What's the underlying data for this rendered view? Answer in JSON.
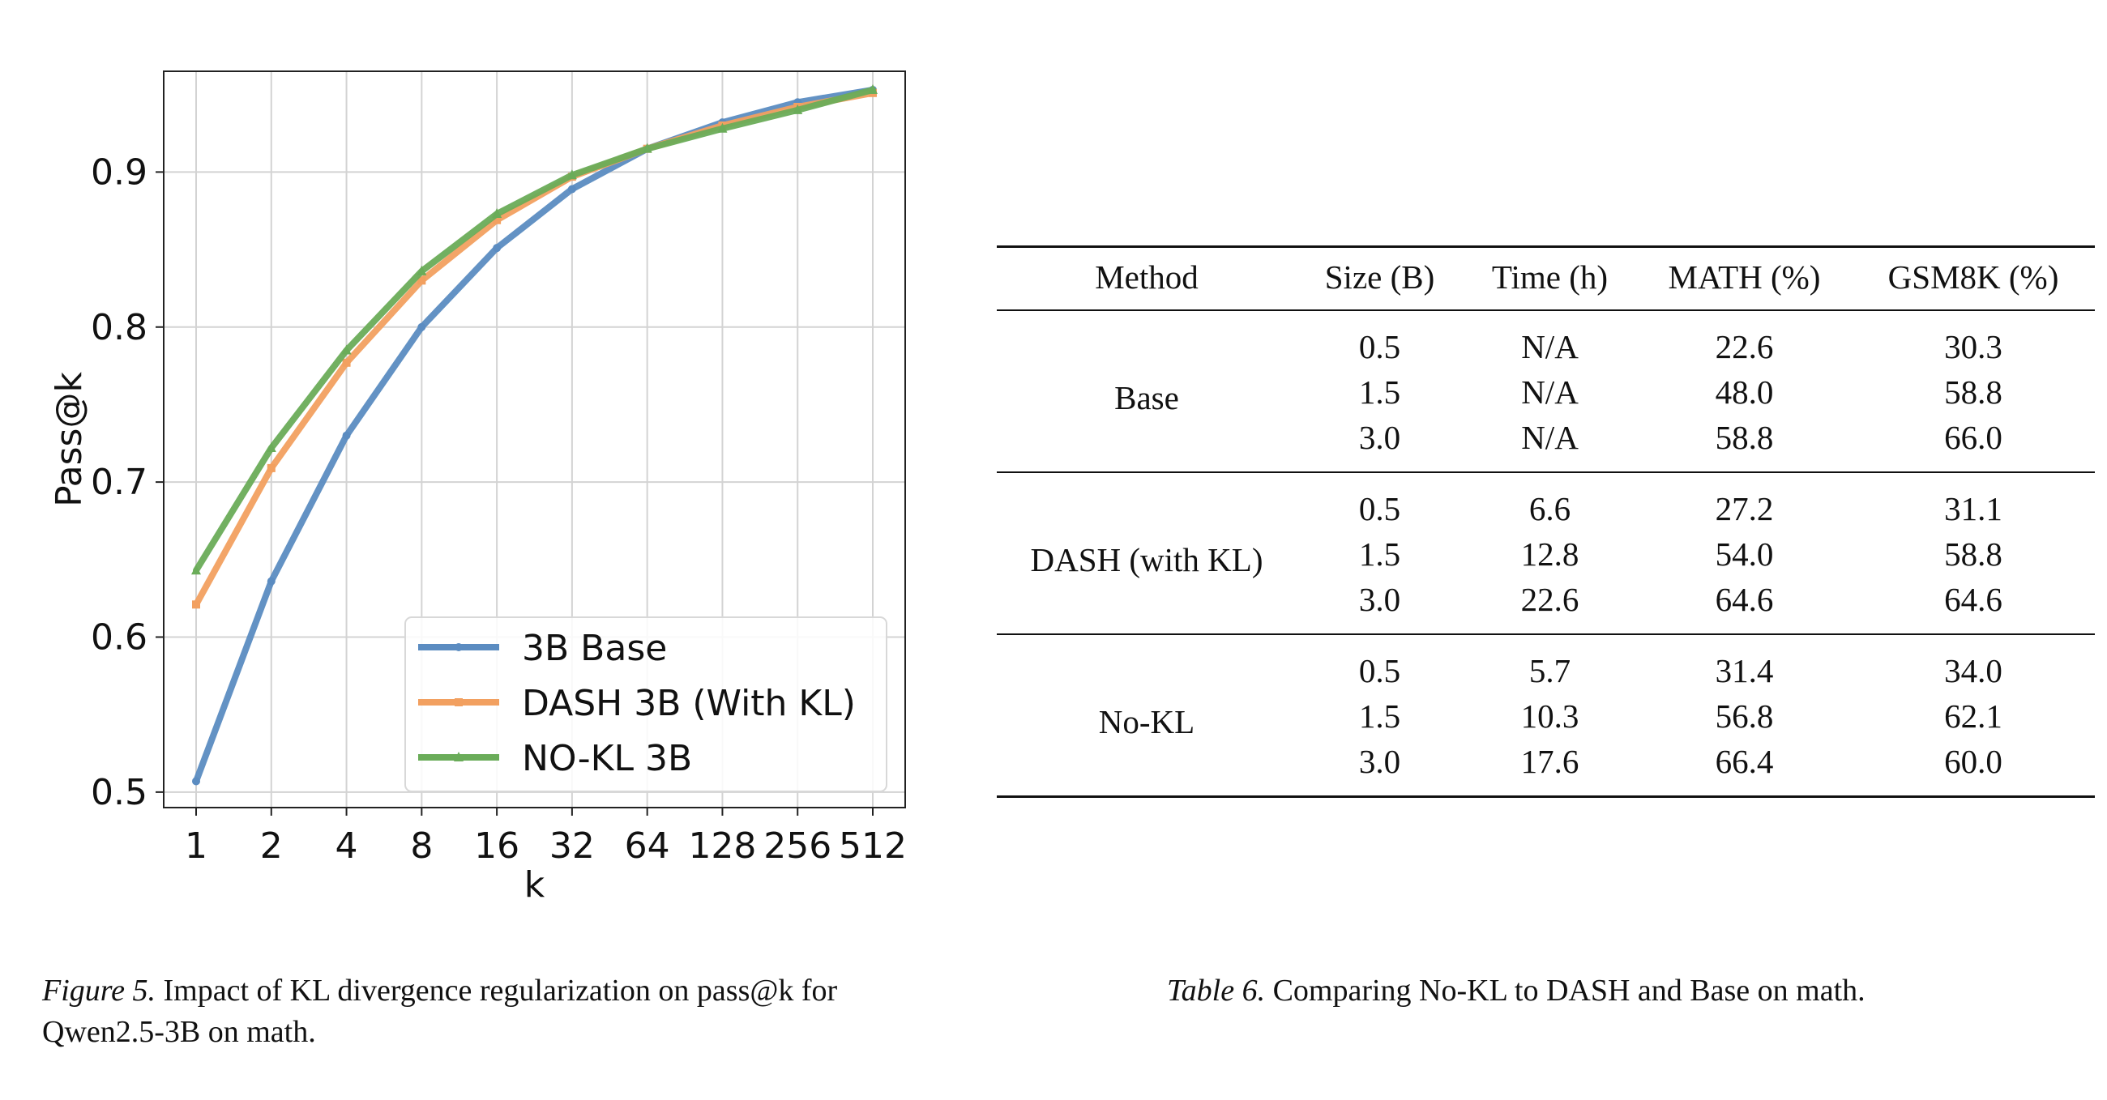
{
  "figure_caption": {
    "label": "Figure 5.",
    "text": "Impact of KL divergence regularization on pass@k for Qwen2.5-3B on math."
  },
  "table_caption": {
    "label": "Table 6.",
    "text": "Comparing No-KL to DASH and Base on math."
  },
  "chart_data": {
    "type": "line",
    "title": "",
    "xlabel": "k",
    "ylabel": "Pass@k",
    "categories": [
      "1",
      "2",
      "4",
      "8",
      "16",
      "32",
      "64",
      "128",
      "256",
      "512"
    ],
    "ylim": [
      0.49,
      0.965
    ],
    "yticks": [
      "0.5",
      "0.6",
      "0.7",
      "0.8",
      "0.9"
    ],
    "grid": true,
    "legend_position": "lower-right",
    "series": [
      {
        "name": "3B Base",
        "color": "#5b8cc1",
        "marker": "circle",
        "values": [
          0.507,
          0.636,
          0.73,
          0.8,
          0.851,
          0.889,
          0.915,
          0.932,
          0.945,
          0.953
        ]
      },
      {
        "name": "DASH 3B (With KL)",
        "color": "#f2a060",
        "marker": "square",
        "values": [
          0.621,
          0.709,
          0.777,
          0.83,
          0.869,
          0.897,
          0.915,
          0.93,
          0.942,
          0.951
        ]
      },
      {
        "name": "NO-KL 3B",
        "color": "#6aac59",
        "marker": "triangle",
        "values": [
          0.643,
          0.722,
          0.785,
          0.836,
          0.873,
          0.898,
          0.915,
          0.928,
          0.94,
          0.953
        ]
      }
    ]
  },
  "table": {
    "headers": [
      "Method",
      "Size (B)",
      "Time (h)",
      "MATH (%)",
      "GSM8K (%)"
    ],
    "groups": [
      {
        "method": "Base",
        "rows": [
          [
            "0.5",
            "N/A",
            "22.6",
            "30.3"
          ],
          [
            "1.5",
            "N/A",
            "48.0",
            "58.8"
          ],
          [
            "3.0",
            "N/A",
            "58.8",
            "66.0"
          ]
        ]
      },
      {
        "method": "DASH (with KL)",
        "rows": [
          [
            "0.5",
            "6.6",
            "27.2",
            "31.1"
          ],
          [
            "1.5",
            "12.8",
            "54.0",
            "58.8"
          ],
          [
            "3.0",
            "22.6",
            "64.6",
            "64.6"
          ]
        ]
      },
      {
        "method": "No-KL",
        "rows": [
          [
            "0.5",
            "5.7",
            "31.4",
            "34.0"
          ],
          [
            "1.5",
            "10.3",
            "56.8",
            "62.1"
          ],
          [
            "3.0",
            "17.6",
            "66.4",
            "60.0"
          ]
        ]
      }
    ]
  }
}
